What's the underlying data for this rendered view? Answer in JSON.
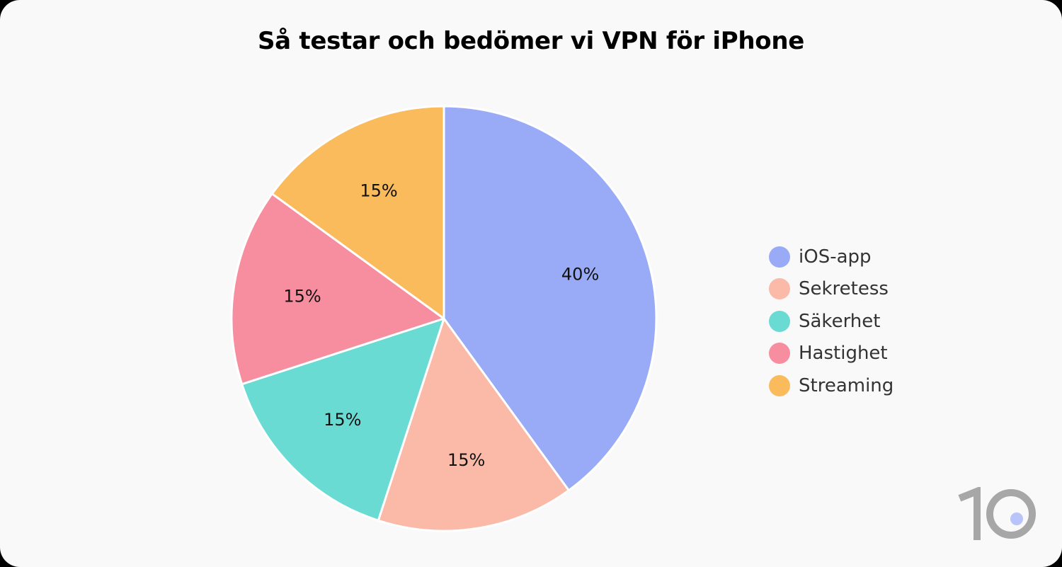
{
  "chart_data": {
    "type": "pie",
    "title": "Så testar och bedömer vi VPN för iPhone",
    "slices": [
      {
        "label": "iOS-app",
        "value": 40,
        "display": "40%",
        "color": "#99abf7"
      },
      {
        "label": "Sekretess",
        "value": 15,
        "display": "15%",
        "color": "#fbb9a8"
      },
      {
        "label": "Säkerhet",
        "value": 15,
        "display": "15%",
        "color": "#6adbd3"
      },
      {
        "label": "Hastighet",
        "value": 15,
        "display": "15%",
        "color": "#f78ea0"
      },
      {
        "label": "Streaming",
        "value": 15,
        "display": "15%",
        "color": "#fabb5c"
      }
    ],
    "legend_position": "right"
  },
  "logo": {
    "text": "10",
    "icon": "brand-10-logo",
    "color": "#a7a7a7",
    "dot_color": "#b9c4fa"
  }
}
